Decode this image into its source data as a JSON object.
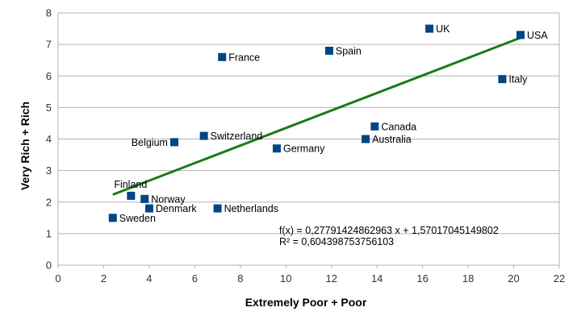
{
  "chart_data": {
    "type": "scatter",
    "xlabel": "Extremely Poor + Poor",
    "ylabel": "Very Rich + Rich",
    "xlim": [
      0,
      22
    ],
    "ylim": [
      0,
      8
    ],
    "xticks": [
      0,
      2,
      4,
      6,
      8,
      10,
      12,
      14,
      16,
      18,
      20,
      22
    ],
    "yticks": [
      0,
      1,
      2,
      3,
      4,
      5,
      6,
      7,
      8
    ],
    "grid": "horizontal",
    "marker_color": "#004586",
    "trendline_color": "#1a7a1a",
    "points": [
      {
        "label": "UK",
        "x": 16.3,
        "y": 7.5
      },
      {
        "label": "USA",
        "x": 20.3,
        "y": 7.3
      },
      {
        "label": "France",
        "x": 7.2,
        "y": 6.6
      },
      {
        "label": "Spain",
        "x": 11.9,
        "y": 6.8
      },
      {
        "label": "Italy",
        "x": 19.5,
        "y": 5.9
      },
      {
        "label": "Canada",
        "x": 13.9,
        "y": 4.4
      },
      {
        "label": "Australia",
        "x": 13.5,
        "y": 4.0
      },
      {
        "label": "Switzerland",
        "x": 6.4,
        "y": 4.1
      },
      {
        "label": "Belgium",
        "x": 5.1,
        "y": 3.9
      },
      {
        "label": "Germany",
        "x": 9.6,
        "y": 3.7
      },
      {
        "label": "Finland",
        "x": 3.2,
        "y": 2.2
      },
      {
        "label": "Norway",
        "x": 3.8,
        "y": 2.1
      },
      {
        "label": "Denmark",
        "x": 4.0,
        "y": 1.8
      },
      {
        "label": "Netherlands",
        "x": 7.0,
        "y": 1.8
      },
      {
        "label": "Sweden",
        "x": 2.4,
        "y": 1.5
      }
    ],
    "trendline": {
      "slope": 0.27791424862963,
      "intercept": 1.57017045149802,
      "x_range": [
        2.4,
        20.3
      ],
      "equation": "f(x) = 0,27791424862963 x + 1,57017045149802",
      "r_squared": "R² = 0,604398753756103"
    }
  }
}
